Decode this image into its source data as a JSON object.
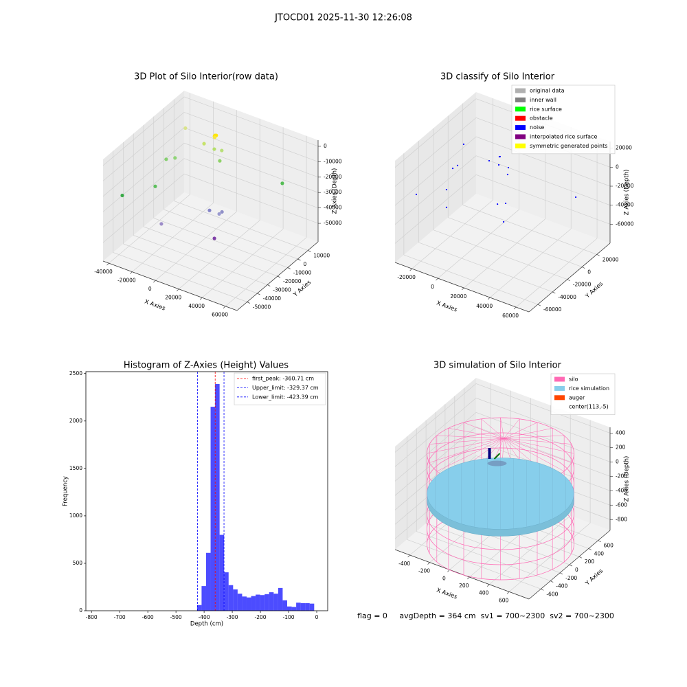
{
  "title": "JTOCD01 2025-11-30 12:26:08",
  "footer": "flag = 0     avgDepth = 364 cm  sv1 = 700~2300  sv2 = 700~2300",
  "chart_data": [
    {
      "type": "scatter3d",
      "title": "3D Plot of Silo Interior(row data)",
      "xlabel": "X Axies",
      "ylabel": "Y Axies",
      "zlabel": "Z Axies (Depth)",
      "xlim": [
        -45000,
        70000
      ],
      "ylim": [
        -60000,
        20000
      ],
      "zlim": [
        -62000,
        4000
      ],
      "xticks": [
        -40000,
        -20000,
        0,
        20000,
        40000,
        60000
      ],
      "yticks": [
        -50000,
        -40000,
        -30000,
        -20000,
        -10000,
        0,
        10000
      ],
      "zticks": [
        -50000,
        -40000,
        -30000,
        -20000,
        -10000,
        0
      ],
      "x": [
        -30000,
        -4500,
        -3500,
        -5000,
        -4000,
        -4800,
        -7000,
        1800,
        8200,
        6500,
        -18000,
        -25600,
        -35000,
        -42400,
        53200,
        11600,
        19900,
        22300,
        -15800,
        29700
      ],
      "y": [
        4000,
        4000,
        4000,
        4000,
        3000,
        4000,
        -4000,
        -4000,
        -4000,
        -4000,
        -20000,
        -20000,
        -20000,
        -44000,
        4000,
        -20000,
        -20000,
        -20000,
        -36000,
        -36000
      ],
      "z": [
        -7200,
        -4800,
        -4500,
        -5500,
        -5000,
        -6200,
        -6400,
        -7500,
        -6600,
        -13800,
        -9800,
        -12800,
        -33000,
        -27600,
        -19800,
        -35600,
        -35600,
        -33600,
        -43100,
        -39800
      ],
      "colors": [
        "#d9e38c",
        "#ffe600",
        "#ffe600",
        "#ffe600",
        "#ffe600",
        "#f5e640",
        "#c6e36a",
        "#b5df6a",
        "#b8df78",
        "#8fd268",
        "#8fd476",
        "#86cf70",
        "#5cbf5c",
        "#3aaa48",
        "#55bd55",
        "#8484c8",
        "#9a9ad0",
        "#9090c8",
        "#9c8cc8",
        "#8040a8"
      ]
    },
    {
      "type": "scatter3d",
      "title": "3D classify of Silo Interior",
      "xlabel": "X Axies",
      "ylabel": "Y Axies",
      "zlabel": "Z Axies (Depth)",
      "xlim": [
        -33000,
        70000
      ],
      "ylim": [
        -72000,
        38000
      ],
      "zlim": [
        -80000,
        27000
      ],
      "xticks": [
        -20000,
        0,
        20000,
        40000,
        60000
      ],
      "yticks": [
        -60000,
        -40000,
        -20000,
        0,
        20000
      ],
      "zticks": [
        -60000,
        -40000,
        -20000,
        0,
        20000
      ],
      "legend": "upper right",
      "series": [
        {
          "name": "original data",
          "color": "#b0b0b0"
        },
        {
          "name": "inner wall",
          "color": "#808080"
        },
        {
          "name": "rice surface",
          "color": "#00ff00"
        },
        {
          "name": "obstacle",
          "color": "#ff0000"
        },
        {
          "name": "noise",
          "color": "#0000ff",
          "x": [
            16100,
            16600,
            8200,
            15600,
            23000,
            22400,
            -16100,
            -19800,
            -24600,
            -29100,
            -24600,
            14600,
            20900,
            19300,
            56100,
            -11400
          ],
          "y": [
            -17000,
            -17000,
            -17000,
            -17000,
            -17000,
            -17000,
            -17000,
            -17000,
            -17000,
            -50000,
            -17000,
            -17000,
            -17000,
            -17000,
            16000,
            -17000
          ],
          "z": [
            19900,
            20300,
            11700,
            11100,
            11900,
            4400,
            -5600,
            -10500,
            -35300,
            -20900,
            -54000,
            -30700,
            -26700,
            -47000,
            -24100,
            19100
          ]
        },
        {
          "name": "interpolated rice surface",
          "color": "#800080"
        },
        {
          "name": "symmetric generated points",
          "color": "#ffff00"
        }
      ]
    },
    {
      "type": "histogram",
      "title": "Histogram of Z-Axies (Height) Values",
      "xlabel": "Depth (cm)",
      "ylabel": "Frequency",
      "color": "#0000ff",
      "bins": [
        -425,
        -409,
        -393,
        -377,
        -361,
        -345,
        -329,
        -313,
        -297,
        -281,
        -265,
        -249,
        -233,
        -217,
        -201,
        -185,
        -169,
        -153,
        -137,
        -121,
        -105,
        -89,
        -73,
        -57,
        -41,
        -25,
        -9
      ],
      "counts": [
        60,
        260,
        610,
        2150,
        2390,
        800,
        405,
        270,
        225,
        180,
        150,
        140,
        155,
        170,
        165,
        175,
        195,
        180,
        240,
        110,
        45,
        40,
        85,
        80,
        80,
        75
      ],
      "xlim": [
        -820,
        39
      ],
      "ylim": [
        0,
        2520
      ],
      "xticks": [
        -800,
        -700,
        -600,
        -500,
        -400,
        -300,
        -200,
        -100,
        0
      ],
      "yticks": [
        0,
        500,
        1000,
        1500,
        2000,
        2500
      ],
      "legend": "upper right",
      "lines": [
        {
          "name": "first_peak: -360.71 cm",
          "value": -360.71,
          "color": "#ff0000"
        },
        {
          "name": "Upper_limit: -329.37 cm",
          "value": -329.37,
          "color": "#0000ff"
        },
        {
          "name": "Lower_limit: -423.39 cm",
          "value": -423.39,
          "color": "#0000ff"
        }
      ]
    },
    {
      "type": "surface3d",
      "title": "3D simulation of Silo Interior",
      "xlabel": "X Axies",
      "ylabel": "Y Axies",
      "zlabel": "Z Axies (Depth)",
      "xlim": [
        -550,
        800
      ],
      "ylim": [
        -850,
        850
      ],
      "zlim": [
        -950,
        480
      ],
      "xticks": [
        -400,
        -200,
        0,
        200,
        400,
        600
      ],
      "yticks": [
        -600,
        -400,
        -200,
        0,
        200,
        400,
        600
      ],
      "zticks": [
        -800,
        -600,
        -400,
        -200,
        0,
        200,
        400
      ],
      "legend": "upper right",
      "series": [
        {
          "name": "silo",
          "color": "#ff69b4"
        },
        {
          "name": "rice simulation",
          "color": "#87ceeb"
        },
        {
          "name": "auger",
          "color": "#ff4500"
        },
        {
          "name": "center(113,-5)",
          "color": "#ffffff"
        }
      ]
    }
  ]
}
